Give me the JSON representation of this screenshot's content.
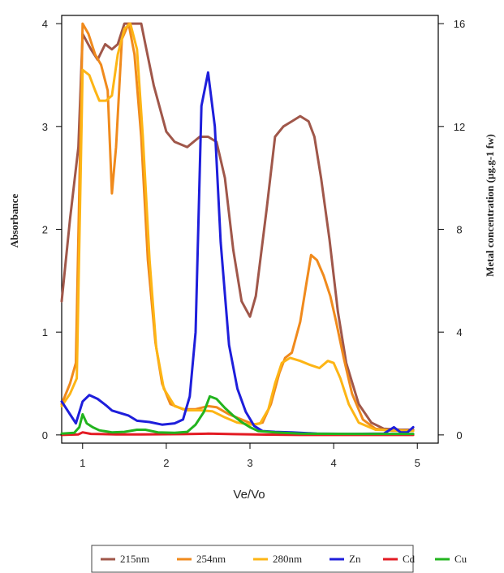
{
  "chart_data": {
    "type": "line",
    "xlabel": "Ve/Vo",
    "ylabel_left": "Absorbance",
    "ylabel_right": "Metal concentration (µg.g-1 fw)",
    "xlim": [
      0.75,
      5.25
    ],
    "ylim_left": [
      -0.08,
      4.08
    ],
    "ylim_right": [
      -0.32,
      16.32
    ],
    "x_ticks": [
      1,
      2,
      3,
      4,
      5
    ],
    "y_ticks_left": [
      0,
      1,
      2,
      3,
      4
    ],
    "y_ticks_right": [
      0,
      4,
      8,
      12,
      16
    ],
    "grid": false,
    "legend_position": "bottom",
    "series": [
      {
        "name": "215nm",
        "color": "#a0574a",
        "axis": "left",
        "points": [
          [
            0.75,
            1.3
          ],
          [
            0.85,
            2.1
          ],
          [
            0.95,
            2.8
          ],
          [
            1.0,
            3.9
          ],
          [
            1.1,
            3.75
          ],
          [
            1.18,
            3.65
          ],
          [
            1.27,
            3.8
          ],
          [
            1.35,
            3.75
          ],
          [
            1.42,
            3.8
          ],
          [
            1.5,
            4.0
          ],
          [
            1.6,
            4.0
          ],
          [
            1.7,
            4.0
          ],
          [
            1.75,
            3.8
          ],
          [
            1.85,
            3.4
          ],
          [
            2.0,
            2.95
          ],
          [
            2.1,
            2.85
          ],
          [
            2.25,
            2.8
          ],
          [
            2.4,
            2.9
          ],
          [
            2.5,
            2.9
          ],
          [
            2.6,
            2.85
          ],
          [
            2.7,
            2.5
          ],
          [
            2.8,
            1.8
          ],
          [
            2.9,
            1.3
          ],
          [
            3.0,
            1.15
          ],
          [
            3.07,
            1.35
          ],
          [
            3.2,
            2.2
          ],
          [
            3.3,
            2.9
          ],
          [
            3.4,
            3.0
          ],
          [
            3.5,
            3.05
          ],
          [
            3.6,
            3.1
          ],
          [
            3.7,
            3.05
          ],
          [
            3.77,
            2.9
          ],
          [
            3.85,
            2.5
          ],
          [
            3.95,
            1.9
          ],
          [
            4.05,
            1.2
          ],
          [
            4.15,
            0.7
          ],
          [
            4.3,
            0.3
          ],
          [
            4.45,
            0.12
          ],
          [
            4.6,
            0.06
          ],
          [
            4.8,
            0.05
          ],
          [
            4.95,
            0.05
          ]
        ]
      },
      {
        "name": "254nm",
        "color": "#f08a1c",
        "axis": "left",
        "points": [
          [
            0.75,
            0.3
          ],
          [
            0.85,
            0.5
          ],
          [
            0.92,
            0.7
          ],
          [
            1.0,
            4.0
          ],
          [
            1.07,
            3.9
          ],
          [
            1.15,
            3.7
          ],
          [
            1.22,
            3.6
          ],
          [
            1.3,
            3.35
          ],
          [
            1.35,
            2.35
          ],
          [
            1.4,
            2.8
          ],
          [
            1.47,
            3.85
          ],
          [
            1.55,
            4.0
          ],
          [
            1.62,
            3.7
          ],
          [
            1.7,
            2.9
          ],
          [
            1.78,
            1.7
          ],
          [
            1.87,
            0.9
          ],
          [
            1.95,
            0.5
          ],
          [
            2.05,
            0.3
          ],
          [
            2.2,
            0.25
          ],
          [
            2.35,
            0.25
          ],
          [
            2.5,
            0.28
          ],
          [
            2.6,
            0.27
          ],
          [
            2.75,
            0.2
          ],
          [
            2.9,
            0.15
          ],
          [
            3.05,
            0.1
          ],
          [
            3.15,
            0.12
          ],
          [
            3.25,
            0.3
          ],
          [
            3.35,
            0.6
          ],
          [
            3.42,
            0.75
          ],
          [
            3.5,
            0.8
          ],
          [
            3.6,
            1.1
          ],
          [
            3.68,
            1.5
          ],
          [
            3.73,
            1.75
          ],
          [
            3.8,
            1.7
          ],
          [
            3.88,
            1.55
          ],
          [
            3.96,
            1.35
          ],
          [
            4.03,
            1.1
          ],
          [
            4.12,
            0.75
          ],
          [
            4.22,
            0.4
          ],
          [
            4.35,
            0.15
          ],
          [
            4.5,
            0.06
          ],
          [
            4.7,
            0.04
          ],
          [
            4.95,
            0.04
          ]
        ]
      },
      {
        "name": "280nm",
        "color": "#fdb515",
        "axis": "left",
        "points": [
          [
            0.75,
            0.28
          ],
          [
            0.85,
            0.4
          ],
          [
            0.93,
            0.55
          ],
          [
            1.0,
            3.55
          ],
          [
            1.08,
            3.5
          ],
          [
            1.15,
            3.35
          ],
          [
            1.2,
            3.25
          ],
          [
            1.28,
            3.25
          ],
          [
            1.35,
            3.3
          ],
          [
            1.42,
            3.7
          ],
          [
            1.5,
            3.95
          ],
          [
            1.57,
            4.0
          ],
          [
            1.65,
            3.75
          ],
          [
            1.72,
            2.9
          ],
          [
            1.8,
            1.7
          ],
          [
            1.88,
            0.85
          ],
          [
            1.97,
            0.45
          ],
          [
            2.1,
            0.28
          ],
          [
            2.25,
            0.24
          ],
          [
            2.4,
            0.24
          ],
          [
            2.55,
            0.23
          ],
          [
            2.7,
            0.17
          ],
          [
            2.85,
            0.12
          ],
          [
            3.0,
            0.1
          ],
          [
            3.12,
            0.11
          ],
          [
            3.22,
            0.25
          ],
          [
            3.3,
            0.5
          ],
          [
            3.38,
            0.7
          ],
          [
            3.48,
            0.75
          ],
          [
            3.6,
            0.72
          ],
          [
            3.72,
            0.68
          ],
          [
            3.83,
            0.65
          ],
          [
            3.93,
            0.72
          ],
          [
            4.0,
            0.7
          ],
          [
            4.08,
            0.55
          ],
          [
            4.18,
            0.3
          ],
          [
            4.3,
            0.12
          ],
          [
            4.5,
            0.05
          ],
          [
            4.95,
            0.04
          ]
        ]
      },
      {
        "name": "Zn",
        "color": "#1e1edb",
        "axis": "right",
        "points": [
          [
            0.75,
            1.3
          ],
          [
            0.85,
            0.8
          ],
          [
            0.92,
            0.45
          ],
          [
            1.0,
            1.3
          ],
          [
            1.08,
            1.55
          ],
          [
            1.18,
            1.4
          ],
          [
            1.28,
            1.15
          ],
          [
            1.35,
            0.95
          ],
          [
            1.45,
            0.85
          ],
          [
            1.55,
            0.75
          ],
          [
            1.65,
            0.55
          ],
          [
            1.8,
            0.5
          ],
          [
            1.95,
            0.4
          ],
          [
            2.1,
            0.45
          ],
          [
            2.2,
            0.6
          ],
          [
            2.28,
            1.5
          ],
          [
            2.35,
            4.0
          ],
          [
            2.42,
            12.8
          ],
          [
            2.5,
            14.1
          ],
          [
            2.58,
            12.0
          ],
          [
            2.65,
            7.5
          ],
          [
            2.75,
            3.5
          ],
          [
            2.85,
            1.8
          ],
          [
            2.95,
            0.9
          ],
          [
            3.05,
            0.35
          ],
          [
            3.15,
            0.15
          ],
          [
            3.3,
            0.12
          ],
          [
            3.5,
            0.1
          ],
          [
            3.8,
            0.05
          ],
          [
            4.2,
            0.04
          ],
          [
            4.6,
            0.05
          ],
          [
            4.72,
            0.3
          ],
          [
            4.8,
            0.1
          ],
          [
            4.88,
            0.1
          ],
          [
            4.95,
            0.3
          ]
        ]
      },
      {
        "name": "Cd",
        "color": "#e31b23",
        "axis": "right",
        "points": [
          [
            0.75,
            0.0
          ],
          [
            0.95,
            0.02
          ],
          [
            1.0,
            0.1
          ],
          [
            1.1,
            0.04
          ],
          [
            1.4,
            0.02
          ],
          [
            1.7,
            0.02
          ],
          [
            2.2,
            0.03
          ],
          [
            2.5,
            0.05
          ],
          [
            2.8,
            0.03
          ],
          [
            3.2,
            0.01
          ],
          [
            3.6,
            0.0
          ],
          [
            4.2,
            0.0
          ],
          [
            4.95,
            0.0
          ]
        ]
      },
      {
        "name": "Cu",
        "color": "#22b41e",
        "axis": "right",
        "points": [
          [
            0.75,
            0.05
          ],
          [
            0.9,
            0.08
          ],
          [
            0.96,
            0.3
          ],
          [
            1.0,
            0.8
          ],
          [
            1.05,
            0.45
          ],
          [
            1.12,
            0.3
          ],
          [
            1.2,
            0.18
          ],
          [
            1.35,
            0.1
          ],
          [
            1.5,
            0.12
          ],
          [
            1.65,
            0.2
          ],
          [
            1.75,
            0.2
          ],
          [
            1.9,
            0.1
          ],
          [
            2.1,
            0.08
          ],
          [
            2.25,
            0.12
          ],
          [
            2.35,
            0.4
          ],
          [
            2.45,
            0.9
          ],
          [
            2.52,
            1.5
          ],
          [
            2.6,
            1.4
          ],
          [
            2.7,
            1.05
          ],
          [
            2.8,
            0.75
          ],
          [
            2.9,
            0.5
          ],
          [
            3.0,
            0.3
          ],
          [
            3.1,
            0.15
          ],
          [
            3.3,
            0.1
          ],
          [
            3.6,
            0.05
          ],
          [
            4.2,
            0.04
          ],
          [
            4.95,
            0.04
          ]
        ]
      }
    ]
  }
}
